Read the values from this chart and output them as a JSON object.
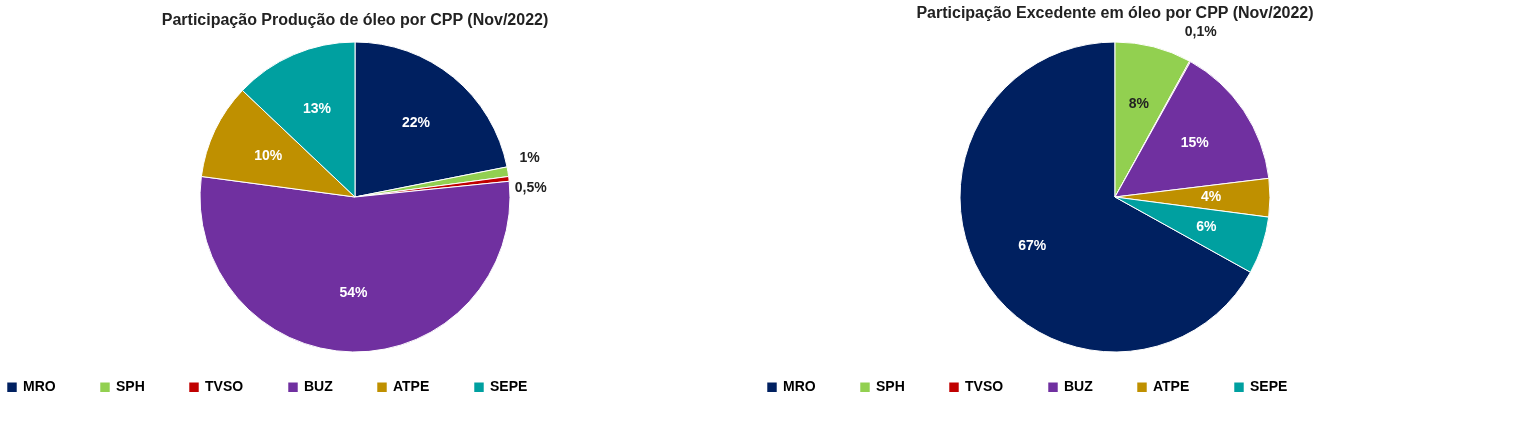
{
  "chart_data": [
    {
      "type": "pie",
      "title": "Participação Produção de óleo por CPP  (Nov/2022)",
      "categories": [
        "MRO",
        "SPH",
        "TVSO",
        "BUZ",
        "ATPE",
        "SEPE"
      ],
      "values": [
        22,
        1,
        0.5,
        54,
        10,
        13
      ],
      "colors": [
        "#002060",
        "#92d050",
        "#c00000",
        "#7030a0",
        "#bf9000",
        "#00a0a0"
      ],
      "value_labels": [
        "22%",
        "1%",
        "0,5%",
        "54%",
        "10%",
        "13%"
      ],
      "legend": "bottom"
    },
    {
      "type": "pie",
      "title": "Participação Excedente em óleo por CPP (Nov/2022)",
      "categories": [
        "MRO",
        "SPH",
        "TVSO",
        "BUZ",
        "ATPE",
        "SEPE"
      ],
      "values": [
        67,
        8,
        0.1,
        15,
        4,
        6
      ],
      "colors": [
        "#002060",
        "#92d050",
        "#c00000",
        "#7030a0",
        "#bf9000",
        "#00a0a0"
      ],
      "value_labels": [
        "67%",
        "8%",
        "0,1%",
        "15%",
        "4%",
        "6%"
      ],
      "legend": "bottom"
    }
  ]
}
